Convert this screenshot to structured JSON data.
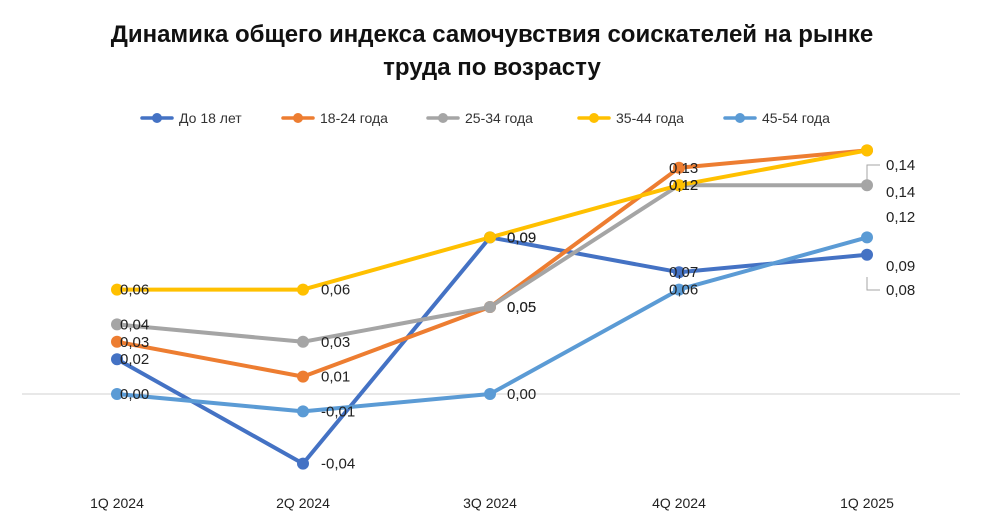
{
  "chart_data": {
    "type": "line",
    "title_line1": "Динамика общего индекса самочувствия соискателей на рынке",
    "title_line2": "труда по возрасту",
    "categories": [
      "1Q 2024",
      "2Q 2024",
      "3Q 2024",
      "4Q 2024",
      "1Q 2025"
    ],
    "ylim": [
      -0.05,
      0.16
    ],
    "grid": false,
    "legend_position": "top",
    "series": [
      {
        "name": "До 18 лет",
        "color": "#4472C4",
        "values": [
          0.02,
          -0.04,
          0.09,
          0.07,
          0.08
        ],
        "labels": [
          "0,02",
          "-0,04",
          "0,09",
          "0,07",
          "0,08"
        ]
      },
      {
        "name": "18-24 года",
        "color": "#ED7D31",
        "values": [
          0.03,
          0.01,
          0.05,
          0.13,
          0.14
        ],
        "labels": [
          "0,03",
          "0,01",
          "0,05",
          "0,13",
          "0,14"
        ]
      },
      {
        "name": "25-34 года",
        "color": "#A5A5A5",
        "values": [
          0.04,
          0.03,
          0.05,
          0.12,
          0.12
        ],
        "labels": [
          "0,04",
          "0,03",
          "0,05",
          "0,12",
          "0,12"
        ]
      },
      {
        "name": "35-44 года",
        "color": "#FFC000",
        "values": [
          0.06,
          0.06,
          0.09,
          0.12,
          0.14
        ],
        "labels": [
          "0,06",
          "0,06",
          "0,09",
          "0,12",
          "0,14"
        ]
      },
      {
        "name": "45-54 года",
        "color": "#5B9BD5",
        "values": [
          0.0,
          -0.01,
          0.0,
          0.06,
          0.09
        ],
        "labels": [
          "0,00",
          "-0,01",
          "0,00",
          "0,06",
          "0,09"
        ]
      }
    ]
  }
}
